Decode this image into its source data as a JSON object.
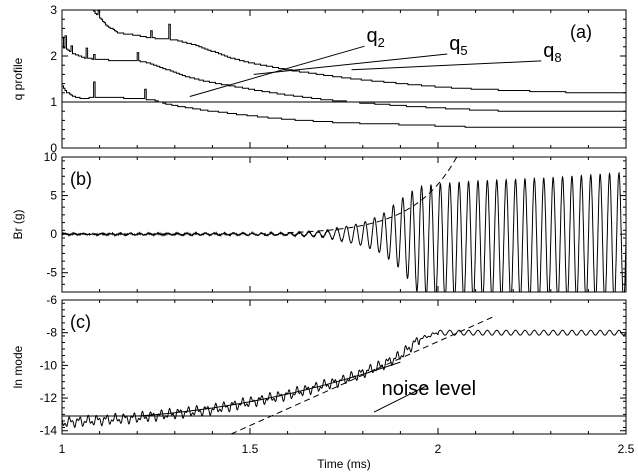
{
  "chart_data": {
    "type": "line",
    "xlabel": "Time (ms)",
    "xlim": [
      1,
      2.5
    ],
    "xticks": [
      1,
      1.5,
      2,
      2.5
    ],
    "xtick_labels": [
      "1",
      "1.5",
      "2",
      "2.5"
    ],
    "panels": [
      {
        "id": "a",
        "tag": "(a)",
        "ylabel": "q profile",
        "ylim": [
          0,
          3
        ],
        "yticks": [
          0,
          1,
          2,
          3
        ],
        "ytick_labels": [
          "0",
          "1",
          "2",
          "3"
        ],
        "reference_line_y": 1,
        "series": [
          {
            "name": "q2",
            "type": "step",
            "points": [
              [
                1.0,
                1.35
              ],
              [
                1.01,
                1.22
              ],
              [
                1.03,
                1.12
              ],
              [
                1.05,
                1.08
              ],
              [
                1.1,
                1.1
              ],
              [
                1.2,
                1.08
              ],
              [
                1.24,
                1.05
              ],
              [
                1.28,
                0.95
              ],
              [
                1.33,
                0.88
              ],
              [
                1.38,
                0.82
              ],
              [
                1.42,
                0.78
              ],
              [
                1.48,
                0.72
              ],
              [
                1.55,
                0.66
              ],
              [
                1.62,
                0.61
              ],
              [
                1.7,
                0.57
              ],
              [
                1.78,
                0.54
              ],
              [
                1.86,
                0.52
              ],
              [
                1.95,
                0.5
              ],
              [
                2.05,
                0.47
              ],
              [
                2.1,
                0.45
              ],
              [
                2.2,
                0.45
              ],
              [
                2.35,
                0.46
              ],
              [
                2.5,
                0.46
              ]
            ]
          },
          {
            "name": "q5",
            "type": "step",
            "points": [
              [
                1.0,
                2.2
              ],
              [
                1.03,
                2.05
              ],
              [
                1.06,
                1.95
              ],
              [
                1.1,
                1.92
              ],
              [
                1.16,
                1.9
              ],
              [
                1.2,
                1.9
              ],
              [
                1.23,
                1.85
              ],
              [
                1.28,
                1.7
              ],
              [
                1.33,
                1.55
              ],
              [
                1.38,
                1.45
              ],
              [
                1.45,
                1.35
              ],
              [
                1.52,
                1.25
              ],
              [
                1.6,
                1.15
              ],
              [
                1.7,
                1.05
              ],
              [
                1.8,
                0.98
              ],
              [
                1.9,
                0.92
              ],
              [
                2.0,
                0.87
              ],
              [
                2.1,
                0.83
              ],
              [
                2.2,
                0.8
              ],
              [
                2.35,
                0.79
              ],
              [
                2.5,
                0.79
              ]
            ]
          },
          {
            "name": "q8",
            "type": "step",
            "points": [
              [
                1.08,
                3.0
              ],
              [
                1.12,
                2.65
              ],
              [
                1.15,
                2.5
              ],
              [
                1.2,
                2.45
              ],
              [
                1.23,
                2.4
              ],
              [
                1.3,
                2.35
              ],
              [
                1.35,
                2.25
              ],
              [
                1.4,
                2.1
              ],
              [
                1.45,
                1.95
              ],
              [
                1.5,
                1.85
              ],
              [
                1.6,
                1.7
              ],
              [
                1.7,
                1.58
              ],
              [
                1.8,
                1.48
              ],
              [
                1.9,
                1.4
              ],
              [
                2.0,
                1.33
              ],
              [
                2.1,
                1.28
              ],
              [
                2.2,
                1.25
              ],
              [
                2.3,
                1.22
              ],
              [
                2.4,
                1.2
              ],
              [
                2.5,
                1.2
              ]
            ]
          }
        ],
        "annotations": [
          {
            "base": "q",
            "sub": "2",
            "x": 1.81,
            "y": 2.3,
            "point_x": 1.34,
            "point_y": 1.12
          },
          {
            "base": "q",
            "sub": "5",
            "x": 2.03,
            "y": 2.13,
            "point_x": 1.51,
            "point_y": 1.6
          },
          {
            "base": "q",
            "sub": "8",
            "x": 2.28,
            "y": 1.98,
            "point_x": 1.77,
            "point_y": 1.7
          }
        ]
      },
      {
        "id": "b",
        "tag": "(b)",
        "ylabel": "Br (g)",
        "ylim": [
          -7.5,
          10
        ],
        "yticks": [
          -5,
          0,
          5,
          10
        ],
        "ytick_labels": [
          "-5",
          "0",
          "5",
          "10"
        ],
        "oscillation": {
          "name": "Br",
          "frequency_cycles_per_ms": 40,
          "amplitude_envelope": [
            [
              1.0,
              0.05
            ],
            [
              1.6,
              0.15
            ],
            [
              1.7,
              0.4
            ],
            [
              1.8,
              1.5
            ],
            [
              1.85,
              2.5
            ],
            [
              1.9,
              4.5
            ],
            [
              1.95,
              7.0
            ],
            [
              2.0,
              7.5
            ],
            [
              2.1,
              7.8
            ],
            [
              2.3,
              8.0
            ],
            [
              2.5,
              8.5
            ]
          ],
          "offset_envelope": [
            [
              1.0,
              0.0
            ],
            [
              1.9,
              0.0
            ],
            [
              1.95,
              -0.8
            ],
            [
              2.0,
              -1.0
            ],
            [
              2.5,
              -0.5
            ]
          ]
        },
        "fit_curve": {
          "style": "dashed",
          "x": [
            1.6,
            2.05
          ],
          "form": "exponential",
          "y_at_start": 0.2,
          "y_at_end": 10
        }
      },
      {
        "id": "c",
        "tag": "(c)",
        "ylabel": "ln mode",
        "ylim": [
          -14.2,
          -6
        ],
        "yticks": [
          -14,
          -12,
          -10,
          -8,
          -6
        ],
        "ytick_labels": [
          "-14",
          "-12",
          "-10",
          "-8",
          "-6"
        ],
        "noise_level_y": -13.1,
        "noise_label": "noise level",
        "noise_label_pos": {
          "x": 1.85,
          "y": -11.8,
          "point_x": 1.83,
          "point_y": -13.1
        },
        "signal_knots": [
          [
            1.0,
            -13.5
          ],
          [
            1.2,
            -13.2
          ],
          [
            1.4,
            -12.7
          ],
          [
            1.6,
            -11.8
          ],
          [
            1.75,
            -10.9
          ],
          [
            1.85,
            -10.0
          ],
          [
            1.9,
            -9.4
          ],
          [
            1.95,
            -8.4
          ],
          [
            2.0,
            -8.0
          ],
          [
            2.5,
            -8.0
          ]
        ],
        "fit_lines": [
          {
            "style": "solid",
            "form": "quadratic",
            "points": [
              [
                1.2,
                -13.1
              ],
              [
                1.55,
                -12.0
              ],
              [
                1.9,
                -9.8
              ]
            ]
          },
          {
            "style": "dashed",
            "form": "linear",
            "points": [
              [
                1.45,
                -14.2
              ],
              [
                2.15,
                -7.0
              ]
            ]
          }
        ]
      }
    ]
  }
}
